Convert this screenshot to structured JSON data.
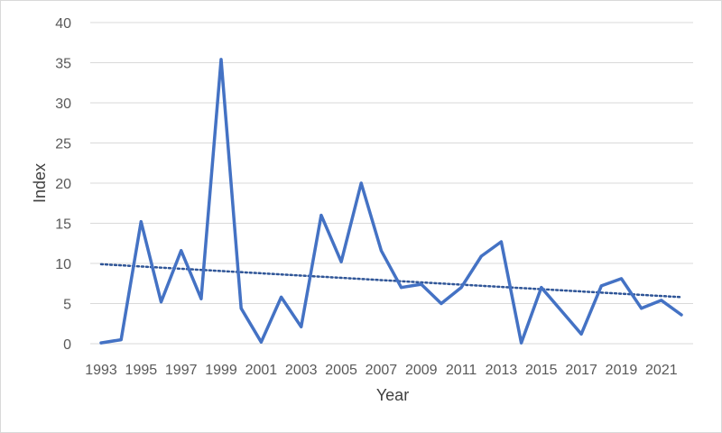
{
  "chart_data": {
    "type": "line",
    "title": "",
    "xlabel": "Year",
    "ylabel": "Index",
    "ylim": [
      0,
      40
    ],
    "yticks": [
      0,
      5,
      10,
      15,
      20,
      25,
      30,
      35,
      40
    ],
    "xlim": [
      1993,
      2022
    ],
    "xtick_labels": [
      "1993",
      "1995",
      "1997",
      "1999",
      "2001",
      "2003",
      "2005",
      "2007",
      "2009",
      "2011",
      "2013",
      "2015",
      "2017",
      "2019",
      "2021"
    ],
    "grid": "horizontal",
    "legend": "none",
    "series": [
      {
        "x": [
          1993,
          1994,
          1995,
          1996,
          1997,
          1998,
          1999,
          2000,
          2001,
          2002,
          2003,
          2004,
          2005,
          2006,
          2007,
          2008,
          2009,
          2010,
          2011,
          2012,
          2013,
          2014,
          2015,
          2016,
          2017,
          2018,
          2019,
          2020,
          2021,
          2022
        ],
        "values": [
          0.1,
          0.5,
          15.2,
          5.2,
          11.6,
          5.6,
          35.4,
          4.4,
          0.2,
          5.8,
          2.1,
          16.0,
          10.2,
          20.0,
          11.6,
          7.0,
          7.4,
          5.0,
          7.0,
          10.9,
          12.7,
          0.1,
          7.0,
          4.1,
          1.2,
          7.2,
          8.1,
          4.4,
          5.4,
          3.6
        ],
        "color": "#4472c4"
      }
    ],
    "trendline": {
      "type": "linear",
      "start": [
        1993,
        9.9
      ],
      "end": [
        2022,
        5.8
      ],
      "color": "#2f5597",
      "style": "dotted"
    },
    "gridline_color": "#d9d9d9"
  }
}
